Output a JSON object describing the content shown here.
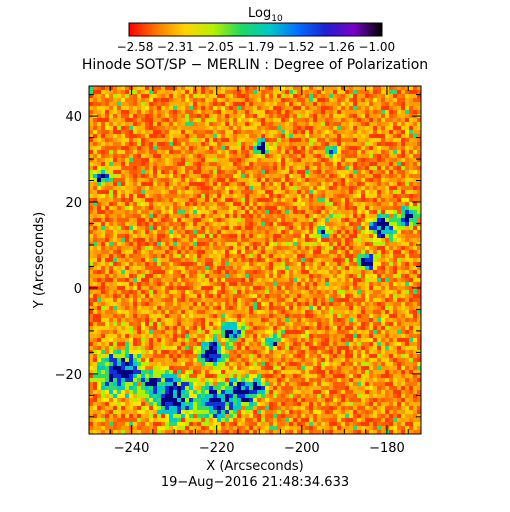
{
  "colorbar": {
    "title_main": "Log",
    "title_sub": "10",
    "tick_labels": [
      "−2.58",
      "−2.31",
      "−2.05",
      "−1.79",
      "−1.52",
      "−1.26",
      "−1.00"
    ],
    "colors": [
      "#ff0000",
      "#ff7a00",
      "#ffd400",
      "#b8f000",
      "#20d860",
      "#00c8c8",
      "#0070ff",
      "#2020d0",
      "#7a00c8",
      "#000000"
    ]
  },
  "title": "Hinode SOT/SP − MERLIN : Degree of Polarization",
  "timestamp": "19−Aug−2016 21:48:34.633",
  "axes": {
    "xlabel": "X (Arcseconds)",
    "ylabel": "Y (Arcseconds)",
    "xticks": [
      "−240",
      "−220",
      "−200",
      "−180"
    ],
    "yticks": [
      "40",
      "20",
      "0",
      "−20"
    ]
  },
  "map": {
    "x_range": [
      -250,
      -172
    ],
    "y_range": [
      -34,
      47
    ],
    "background_colors": [
      "#ff3a00",
      "#ff5c00",
      "#ff7800",
      "#ff9a00",
      "#ffb000",
      "#ffd000"
    ],
    "patch_colors": [
      "#ffe800",
      "#b0f000",
      "#30d870",
      "#00c8c8",
      "#1030d8",
      "#000080"
    ]
  }
}
